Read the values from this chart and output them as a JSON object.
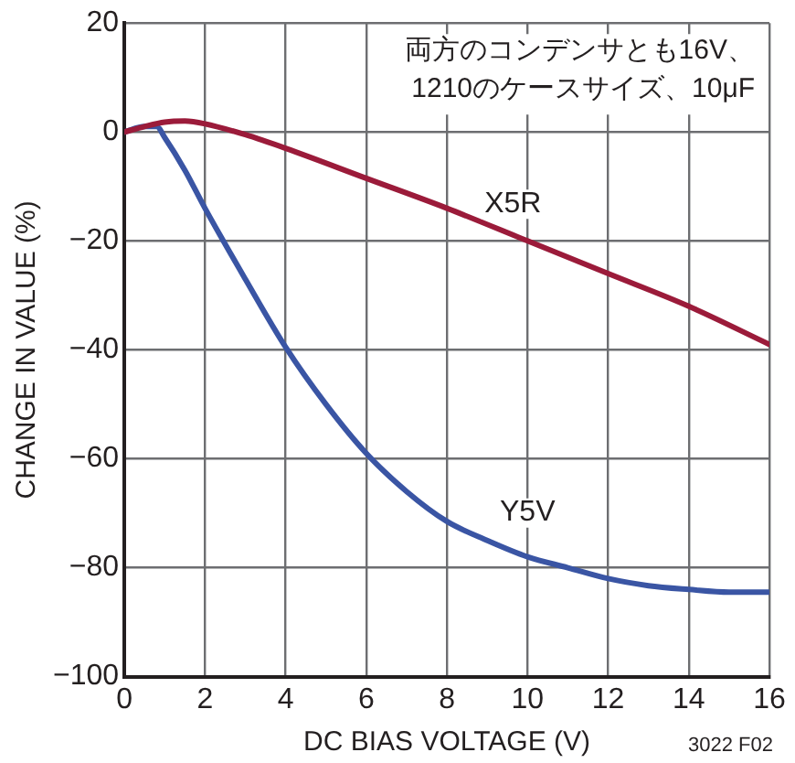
{
  "chart_data": {
    "type": "line",
    "xlabel": "DC BIAS VOLTAGE (V)",
    "ylabel": "CHANGE IN VALUE (%)",
    "annotations": [
      "両方のコンデンサとも16V、\n1210のケースサイズ、10μF",
      "3022 F02"
    ],
    "xlim": [
      0,
      16
    ],
    "xticks": [
      0,
      2,
      4,
      6,
      8,
      10,
      12,
      14,
      16
    ],
    "ylim": [
      -100,
      20
    ],
    "yticks": [
      {
        "value": -100,
        "label": "−100"
      },
      {
        "value": -80,
        "label": "−80"
      },
      {
        "value": -60,
        "label": "−60"
      },
      {
        "value": -40,
        "label": "−40"
      },
      {
        "value": -20,
        "label": "−20"
      },
      0,
      20
    ],
    "grid": true,
    "legend": false,
    "marker": "none",
    "line_style": "solid",
    "series": [
      {
        "name": "X5R",
        "color": "#9b1b3a",
        "x": [
          0,
          0.5,
          1,
          1.5,
          2,
          3,
          4,
          6,
          8,
          10,
          12,
          14,
          16
        ],
        "values": [
          0,
          1,
          1.8,
          2,
          1.5,
          -0.5,
          -3,
          -8.5,
          -14,
          -20,
          -26,
          -32,
          -39
        ]
      },
      {
        "name": "Y5V",
        "color": "#3a55a4",
        "x": [
          0,
          0.5,
          0.8,
          1,
          1.5,
          2,
          3,
          4,
          5,
          6,
          7,
          8,
          9,
          10,
          11,
          12,
          13,
          14,
          15,
          16
        ],
        "values": [
          0,
          1,
          1,
          -1,
          -7,
          -14,
          -27,
          -39.5,
          -50,
          -59,
          -66,
          -71.5,
          -75,
          -78,
          -80,
          -82,
          -83.3,
          -84,
          -84.5,
          -84.5
        ]
      }
    ]
  }
}
